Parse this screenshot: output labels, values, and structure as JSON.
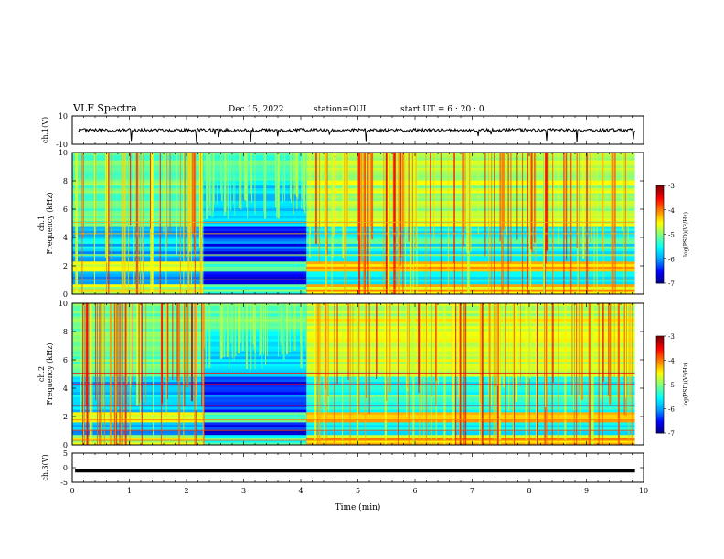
{
  "header": {
    "title": "VLF Spectra",
    "date": "Dec.15, 2022",
    "station": "station=OUI",
    "start": "start  UT =   6 : 20 : 0"
  },
  "colors": {
    "spectral_scale": [
      "#00007f",
      "#0000ff",
      "#00a0ff",
      "#00ffff",
      "#7fff7f",
      "#ffff00",
      "#ff7f00",
      "#ff0000",
      "#7f0000"
    ],
    "waveform": "#000000"
  },
  "chart_data": [
    {
      "type": "line",
      "name": "ch1-waveform",
      "ylabel": "ch.1(V)",
      "ylim": [
        -10,
        10
      ],
      "yticks": [
        "10",
        "-10"
      ],
      "baseline": 0,
      "grid": false
    },
    {
      "type": "heatmap",
      "name": "ch1-spectrogram",
      "ylabel": "ch.1\nFrequency (kHz)",
      "ylim": [
        0,
        10
      ],
      "yticks": [
        "0",
        "2",
        "4",
        "6",
        "8",
        "10"
      ],
      "colorbar": {
        "label": "log(PSD)(V²/Hz)",
        "ticks": [
          "-3",
          "-4",
          "-5",
          "-6",
          "-7"
        ],
        "range": [
          -7,
          -3
        ]
      },
      "quiet_interval_min": [
        2.3,
        4.1
      ]
    },
    {
      "type": "heatmap",
      "name": "ch2-spectrogram",
      "ylabel": "ch.2\nFrequency (kHz)",
      "ylim": [
        0,
        10
      ],
      "yticks": [
        "0",
        "2",
        "4",
        "6",
        "8",
        "10"
      ],
      "colorbar": {
        "label": "log(PSD)(V²/Hz)",
        "ticks": [
          "-3",
          "-4",
          "-5",
          "-6",
          "-7"
        ],
        "range": [
          -7,
          -3
        ]
      },
      "quiet_interval_min": [
        2.3,
        4.1
      ]
    },
    {
      "type": "line",
      "name": "ch3-waveform",
      "ylabel": "ch.3(V)",
      "ylim": [
        -5,
        5
      ],
      "yticks": [
        "5",
        "0",
        "-5"
      ],
      "value": -1,
      "grid": false
    }
  ],
  "xaxis": {
    "label": "Time (min)",
    "range": [
      0,
      10
    ],
    "ticks": [
      "0",
      "1",
      "2",
      "3",
      "4",
      "5",
      "6",
      "7",
      "8",
      "9",
      "10"
    ],
    "data_end_min": 9.85
  }
}
